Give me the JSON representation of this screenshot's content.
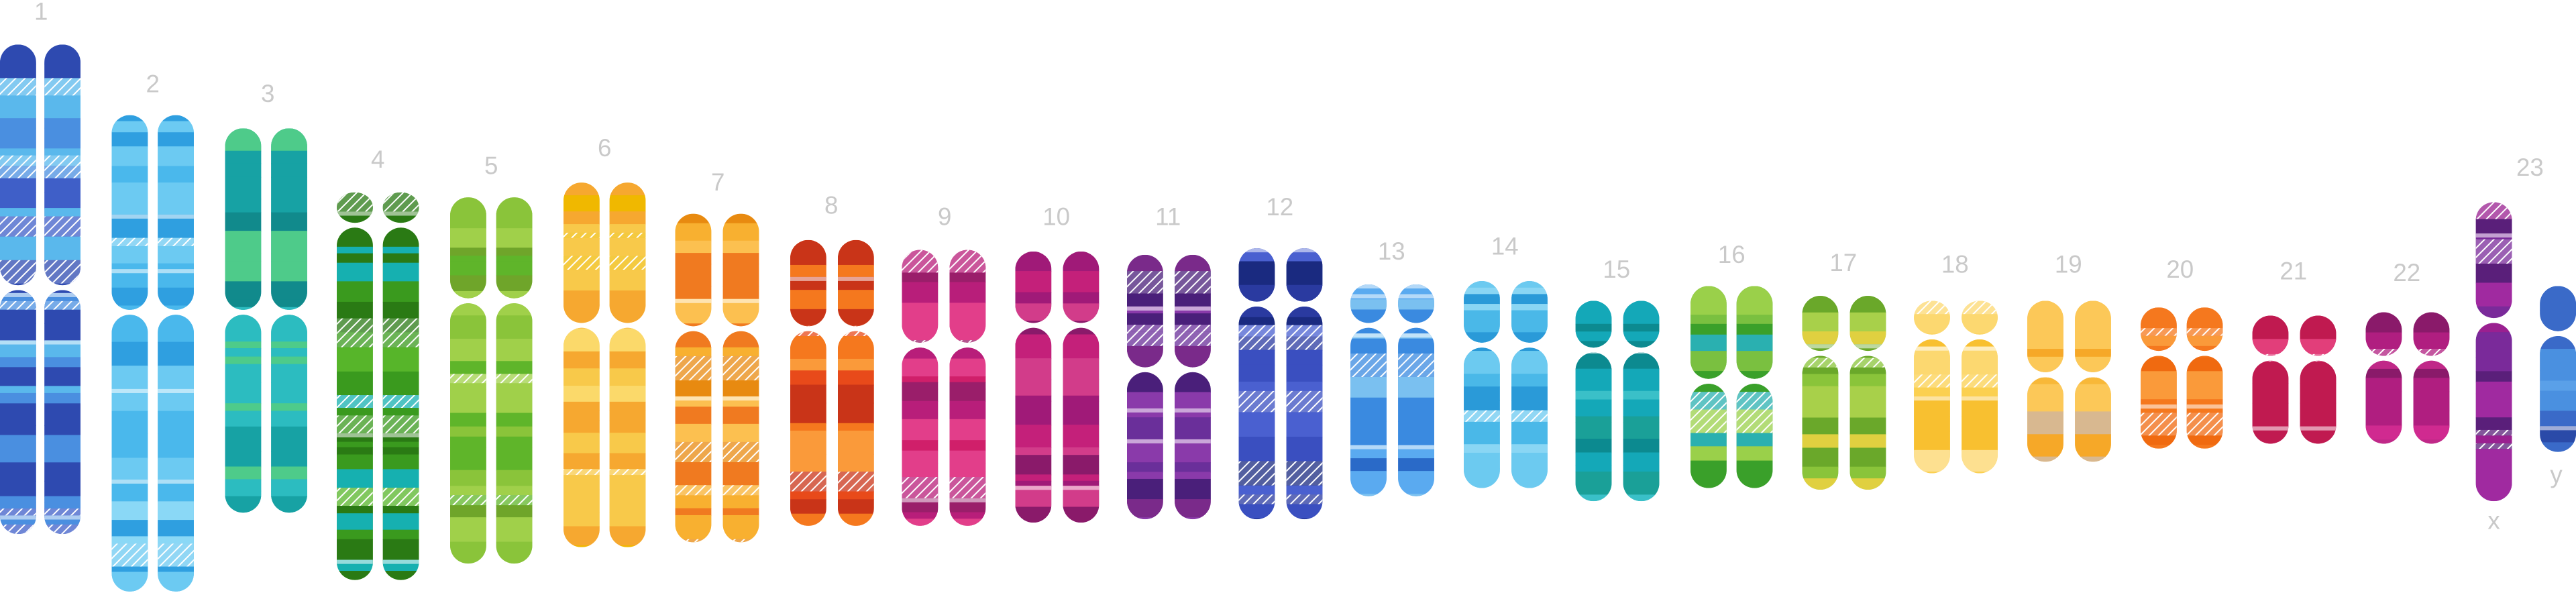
{
  "labels": [
    "1",
    "2",
    "3",
    "4",
    "5",
    "6",
    "7",
    "8",
    "9",
    "10",
    "11",
    "12",
    "13",
    "14",
    "15",
    "16",
    "17",
    "18",
    "19",
    "20",
    "21",
    "22",
    "23"
  ],
  "sex_labels": [
    "x",
    "y"
  ]
}
